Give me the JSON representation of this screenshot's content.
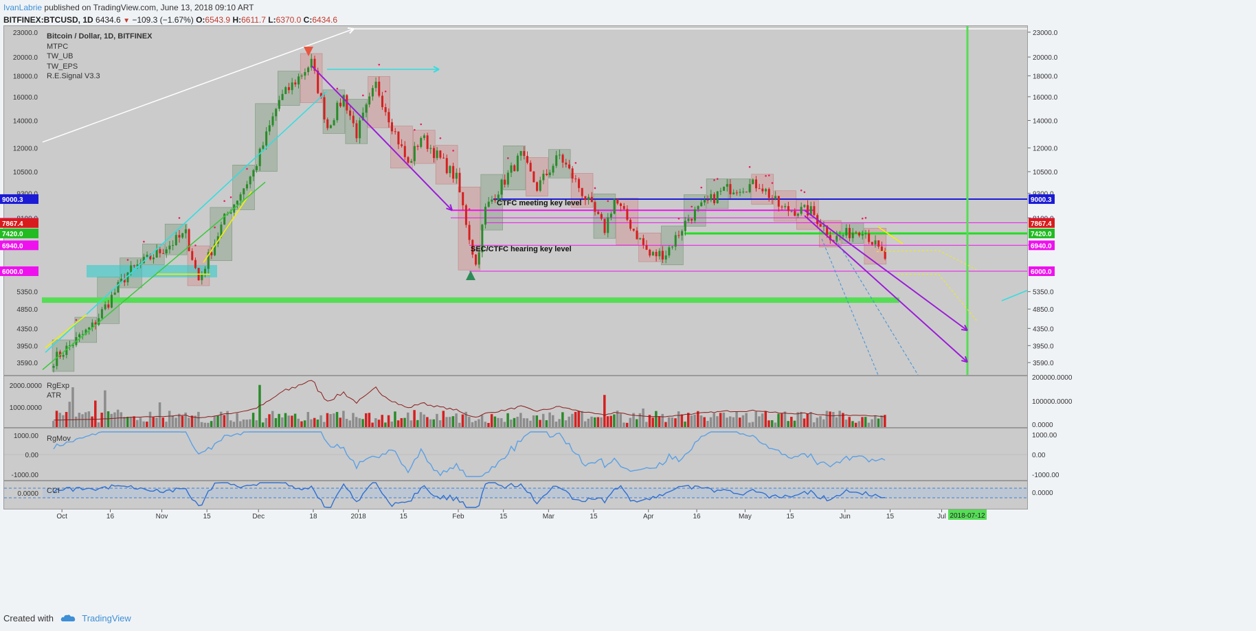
{
  "header": {
    "author": "IvanLabrie",
    "published": "published on TradingView.com, June 13, 2018 09:10 ART"
  },
  "quote": {
    "symbol": "BITFINEX:BTCUSD, 1D",
    "last": "6434.6",
    "change": "−109.3 (−1.67%)",
    "o_label": "O:",
    "o": "6543.9",
    "h_label": "H:",
    "h": "6611.7",
    "l_label": "L:",
    "l": "6370.0",
    "c_label": "C:",
    "c": "6434.6"
  },
  "legend": {
    "title": "Bitcoin / Dollar, 1D, BITFINEX",
    "indicators": [
      "MTPC",
      "TW_UB",
      "TW_EPS",
      "R.E.Signal V3.3"
    ]
  },
  "annotations": {
    "ctfc": "CTFC meeting key level",
    "sec": "SEC/CTFC hearing key level"
  },
  "price_axis": {
    "ticks": [
      "23000.0",
      "20000.0",
      "18000.0",
      "16000.0",
      "14000.0",
      "12000.0",
      "10500.0",
      "9300.0",
      "8100.0",
      "6950.0",
      "5350.0",
      "4850.0",
      "4350.0",
      "3950.0",
      "3590.0"
    ]
  },
  "level_tags": [
    {
      "label": "9000.3",
      "color": "#1b1bd6"
    },
    {
      "label": "7880.0",
      "color": "#ee11ee"
    },
    {
      "label": "7867.4",
      "color": "#d81b1b"
    },
    {
      "label": "7420.0",
      "color": "#22bb22"
    },
    {
      "label": "6940.0",
      "color": "#ee11ee"
    },
    {
      "label": "6000.0",
      "color": "#ee11ee"
    }
  ],
  "panes": {
    "volume": {
      "labels": [
        "RgExp",
        "ATR"
      ],
      "left_ticks": [
        "2000.0000",
        "1000.0000"
      ],
      "right_ticks": [
        "200000.0000",
        "100000.0000",
        "0.0000"
      ]
    },
    "mov": {
      "label": "RgMov",
      "ticks": [
        "1000.00",
        "0.00",
        "-1000.00"
      ]
    },
    "cci": {
      "label": "CCI",
      "ticks": [
        "0.0000"
      ]
    }
  },
  "time_axis": {
    "ticks": [
      "Oct",
      "16",
      "Nov",
      "15",
      "Dec",
      "18",
      "2018",
      "15",
      "Feb",
      "15",
      "Mar",
      "15",
      "Apr",
      "16",
      "May",
      "15",
      "Jun",
      "15",
      "Jul"
    ],
    "highlight": "2018-07-12"
  },
  "footer": {
    "created": "Created with",
    "brand": "TradingView"
  },
  "colors": {
    "bull": "#2a8a2a",
    "bear": "#d42020",
    "blue_level": "#1b1bd6",
    "magenta": "#ee11ee",
    "green_level": "#22dd22",
    "violet": "#9b1bd8",
    "cyan": "#33dde0",
    "yellow": "#f4f000",
    "accent": "#3d8fd6"
  },
  "chart_data": {
    "type": "candlestick",
    "title": "Bitcoin / Dollar, 1D, BITFINEX",
    "x_range": [
      "2017-09-25",
      "2018-07-24"
    ],
    "y_scale": "log",
    "y_range": [
      3350,
      23800
    ],
    "levels": [
      9000.3,
      7880.0,
      7867.4,
      7420.0,
      6940.0,
      6000.0
    ],
    "waypoints": [
      [
        "2017-09-28",
        3650
      ],
      [
        "2017-10-10",
        4400
      ],
      [
        "2017-10-21",
        5950
      ],
      [
        "2017-11-08",
        7400
      ],
      [
        "2017-11-12",
        5700
      ],
      [
        "2017-11-20",
        8050
      ],
      [
        "2017-11-29",
        10500
      ],
      [
        "2017-12-07",
        15700
      ],
      [
        "2017-12-17",
        19400
      ],
      [
        "2017-12-22",
        13500
      ],
      [
        "2017-12-27",
        16000
      ],
      [
        "2017-12-31",
        13000
      ],
      [
        "2018-01-06",
        17100
      ],
      [
        "2018-01-16",
        10900
      ],
      [
        "2018-01-20",
        12800
      ],
      [
        "2018-01-31",
        10100
      ],
      [
        "2018-02-06",
        6200
      ],
      [
        "2018-02-09",
        8500
      ],
      [
        "2018-02-20",
        11500
      ],
      [
        "2018-02-25",
        9600
      ],
      [
        "2018-03-04",
        11500
      ],
      [
        "2018-03-18",
        7600
      ],
      [
        "2018-03-21",
        9000
      ],
      [
        "2018-04-01",
        6550
      ],
      [
        "2018-04-06",
        6650
      ],
      [
        "2018-04-13",
        8100
      ],
      [
        "2018-04-24",
        9500
      ],
      [
        "2018-05-05",
        9800
      ],
      [
        "2018-05-12",
        8500
      ],
      [
        "2018-05-21",
        8400
      ],
      [
        "2018-05-28",
        7200
      ],
      [
        "2018-06-06",
        7650
      ],
      [
        "2018-06-13",
        6434.6
      ]
    ],
    "last_bar": {
      "date": "2018-06-13",
      "open": 6543.9,
      "high": 6611.7,
      "low": 6370.0,
      "close": 6434.6
    }
  }
}
